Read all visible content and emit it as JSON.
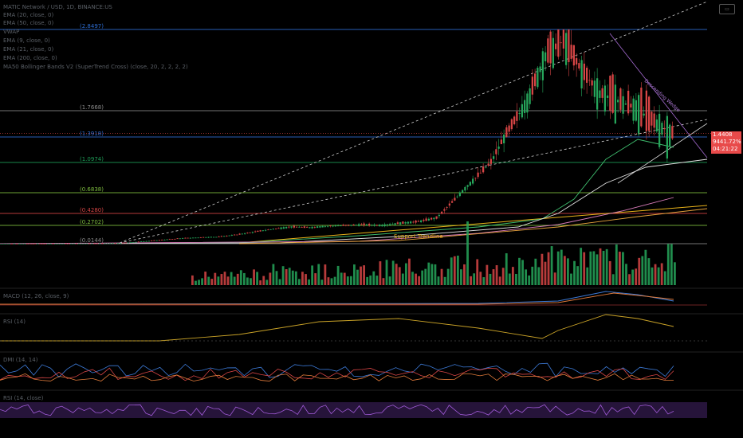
{
  "header": {
    "symbol_line": "MATIC Network / USD, 1D, BINANCE:US",
    "indicators": [
      "EMA (20, close, 0)",
      "EMA (50, close, 0)",
      "VWAP",
      "EMA (9, close, 0)",
      "EMA (21, close, 0)",
      "EMA (200, close, 0)",
      "MA50 Bollinger Bands V2 (SuperTrend Cross) (close, 20, 2, 2, 2, 2)"
    ]
  },
  "price_tag": {
    "price": "1.4408",
    "change": "9441.72%",
    "countdown": "04:21:22"
  },
  "chart_data": {
    "type": "line",
    "title": "",
    "series": [
      {
        "values": [
          0.0144,
          0.015,
          0.016,
          0.016,
          0.017,
          0.018,
          0.02,
          0.03,
          0.05,
          0.07,
          0.09,
          0.1,
          0.11,
          0.14,
          0.18,
          0.22,
          0.25,
          0.24,
          0.26,
          0.27,
          0.28,
          0.27,
          0.3,
          0.32,
          0.37,
          0.6,
          0.85,
          1.1,
          1.5,
          1.9,
          2.5,
          2.7,
          2.3,
          2.0,
          1.9,
          1.8,
          1.6,
          1.44
        ]
      }
    ],
    "fib_levels": [
      {
        "label": "(2.8497)",
        "value": 2.8497,
        "color": "#2e6fd6"
      },
      {
        "label": "(1.7668)",
        "value": 1.7668,
        "color": "#8a8a8a"
      },
      {
        "label": "(1.3918)",
        "value": 1.3918,
        "color": "#2e6fd6"
      },
      {
        "label": "(1.0974)",
        "value": 1.0974,
        "color": "#1e9e58"
      },
      {
        "label": "(0.6838)",
        "value": 0.6838,
        "color": "#7fbf3f"
      },
      {
        "label": "(0.4280)",
        "value": 0.428,
        "color": "#d64545"
      },
      {
        "label": "(0.2702)",
        "value": 0.2702,
        "color": "#7fbf3f"
      },
      {
        "label": "(0.0144)",
        "value": 0.0144,
        "color": "#8a8a8a"
      }
    ],
    "annotations": [
      "Support Trendline",
      "Descending Wedge"
    ],
    "colors": {
      "up": "#26a65b",
      "down": "#d64545",
      "price": "#e84a4a"
    }
  },
  "panels": {
    "macd_label": "MACD (12, 26, close, 9)",
    "rsi_label": "RSI (14)",
    "dmi_label": "DMI (14, 14)",
    "stoch_label": "RSI (14, close)"
  }
}
